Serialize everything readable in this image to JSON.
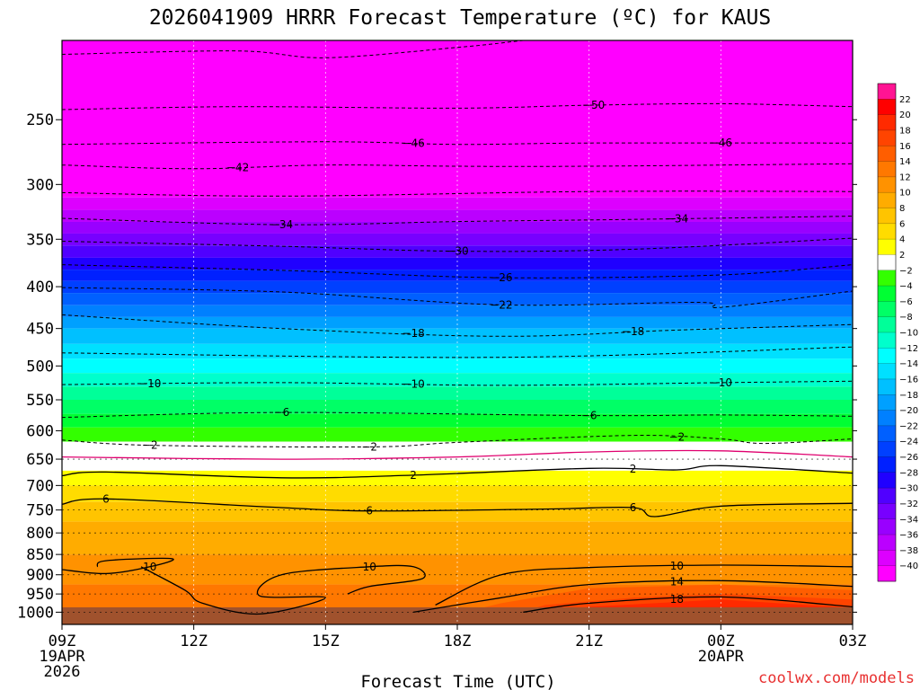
{
  "chart_data": {
    "type": "time-height contour",
    "title": "2026041909 HRRR Forecast Temperature (ºC) for KAUS",
    "xlabel": "Forecast Time (UTC)",
    "ylabel": "",
    "credit": "coolwx.com/models",
    "x_ticks": [
      {
        "h": 0,
        "lines": [
          "09Z",
          "19APR",
          "2026"
        ]
      },
      {
        "h": 3,
        "lines": [
          "12Z"
        ]
      },
      {
        "h": 6,
        "lines": [
          "15Z"
        ]
      },
      {
        "h": 9,
        "lines": [
          "18Z"
        ]
      },
      {
        "h": 12,
        "lines": [
          "21Z"
        ]
      },
      {
        "h": 15,
        "lines": [
          "00Z",
          "20APR"
        ]
      },
      {
        "h": 18,
        "lines": [
          "03Z"
        ]
      }
    ],
    "x_range_hours": [
      0,
      18
    ],
    "y_ticks": [
      250,
      300,
      350,
      400,
      450,
      500,
      550,
      600,
      650,
      700,
      750,
      800,
      850,
      900,
      950,
      1000
    ],
    "y_range_hpa": [
      200,
      1035
    ],
    "colorbar": {
      "labels": [
        22,
        20,
        18,
        16,
        14,
        12,
        10,
        8,
        6,
        4,
        2,
        -2,
        -4,
        -6,
        -8,
        -10,
        -12,
        -14,
        -16,
        -18,
        -20,
        -22,
        -24,
        -26,
        -28,
        -30,
        -32,
        -34,
        -36,
        -38,
        -40
      ],
      "bins": [
        {
          "color": "#ff1493"
        },
        {
          "color": "#ff0000"
        },
        {
          "color": "#ff2a00"
        },
        {
          "color": "#ff4400"
        },
        {
          "color": "#ff5e00"
        },
        {
          "color": "#ff7800"
        },
        {
          "color": "#ff9200"
        },
        {
          "color": "#ffac00"
        },
        {
          "color": "#ffc400"
        },
        {
          "color": "#ffdc00"
        },
        {
          "color": "#ffff00"
        },
        {
          "color": "#ffffff"
        },
        {
          "color": "#33ff00"
        },
        {
          "color": "#00ff33"
        },
        {
          "color": "#00ff66"
        },
        {
          "color": "#00ff99"
        },
        {
          "color": "#00ffcc"
        },
        {
          "color": "#00ffff"
        },
        {
          "color": "#00e0ff"
        },
        {
          "color": "#00c0ff"
        },
        {
          "color": "#00a0ff"
        },
        {
          "color": "#0080ff"
        },
        {
          "color": "#0060ff"
        },
        {
          "color": "#0040ff"
        },
        {
          "color": "#0020ff"
        },
        {
          "color": "#2000ff"
        },
        {
          "color": "#5000ff"
        },
        {
          "color": "#7800ff"
        },
        {
          "color": "#9900ff"
        },
        {
          "color": "#bb00ff"
        },
        {
          "color": "#dd00ff"
        },
        {
          "color": "#ff00ff"
        }
      ]
    },
    "temperature_profile": [
      {
        "p": 200,
        "t": -58
      },
      {
        "p": 250,
        "t": -51
      },
      {
        "p": 300,
        "t": -42
      },
      {
        "p": 350,
        "t": -33
      },
      {
        "p": 400,
        "t": -25
      },
      {
        "p": 450,
        "t": -18
      },
      {
        "p": 500,
        "t": -13
      },
      {
        "p": 550,
        "t": -8
      },
      {
        "p": 600,
        "t": -3.5
      },
      {
        "p": 650,
        "t": 0.5
      },
      {
        "p": 700,
        "t": 4
      },
      {
        "p": 750,
        "t": 7
      },
      {
        "p": 800,
        "t": 9
      },
      {
        "p": 850,
        "t": 10
      },
      {
        "p": 900,
        "t": 11
      },
      {
        "p": 950,
        "t": 13
      },
      {
        "p": 1000,
        "t": 14
      }
    ],
    "contours": [
      {
        "level": -54,
        "style": "dashed",
        "points": [
          [
            0,
            208
          ],
          [
            4,
            206
          ],
          [
            6,
            210
          ],
          [
            9,
            204
          ],
          [
            10.5,
            200
          ]
        ]
      },
      {
        "level": -50,
        "style": "dashed",
        "points": [
          [
            0,
            243
          ],
          [
            4,
            241
          ],
          [
            9,
            242
          ],
          [
            12,
            240
          ],
          [
            15,
            239
          ],
          [
            18,
            241
          ]
        ],
        "label_at": 12.1
      },
      {
        "level": -46,
        "style": "dashed",
        "points": [
          [
            0,
            268
          ],
          [
            6,
            266
          ],
          [
            9,
            268
          ],
          [
            12,
            267
          ],
          [
            18,
            267
          ]
        ],
        "label_at": 8
      },
      {
        "level": -46,
        "style": "dashed",
        "points": [
          [
            0,
            267
          ],
          [
            18,
            267
          ]
        ],
        "label_at": 15,
        "label_only": true
      },
      {
        "level": -42,
        "style": "dashed",
        "points": [
          [
            0,
            284
          ],
          [
            3,
            287
          ],
          [
            6,
            284
          ],
          [
            9,
            285
          ],
          [
            12,
            285
          ],
          [
            18,
            283
          ]
        ],
        "label_at": 4
      },
      {
        "level": -38,
        "style": "dashed",
        "points": [
          [
            0,
            307
          ],
          [
            5,
            310
          ],
          [
            12,
            306
          ],
          [
            18,
            306
          ]
        ]
      },
      {
        "level": -34,
        "style": "dashed",
        "points": [
          [
            0,
            330
          ],
          [
            5,
            336
          ],
          [
            9,
            333
          ],
          [
            13,
            331
          ],
          [
            18,
            328
          ]
        ],
        "label_at": 5,
        "label2_at": 14
      },
      {
        "level": -30,
        "style": "dashed",
        "points": [
          [
            0,
            352
          ],
          [
            5,
            357
          ],
          [
            9,
            362
          ],
          [
            13,
            360
          ],
          [
            18,
            349
          ]
        ],
        "label_at": 9
      },
      {
        "level": -26,
        "style": "dashed",
        "points": [
          [
            0,
            376
          ],
          [
            5,
            382
          ],
          [
            10,
            390
          ],
          [
            15,
            387
          ],
          [
            18,
            376
          ]
        ],
        "label_at": 10
      },
      {
        "level": -22,
        "style": "dashed",
        "points": [
          [
            0,
            401
          ],
          [
            5,
            406
          ],
          [
            10,
            421
          ],
          [
            14.5,
            418
          ],
          [
            15,
            424
          ],
          [
            18,
            405
          ]
        ],
        "label_at": 10
      },
      {
        "level": -18,
        "style": "dashed",
        "points": [
          [
            0,
            433
          ],
          [
            5,
            450
          ],
          [
            10,
            460
          ],
          [
            14,
            452
          ],
          [
            18,
            445
          ]
        ],
        "label_at": 8,
        "label2_at": 13
      },
      {
        "level": -14,
        "style": "dashed",
        "points": [
          [
            0,
            482
          ],
          [
            10,
            488
          ],
          [
            18,
            474
          ]
        ]
      },
      {
        "level": -10,
        "style": "dashed",
        "points": [
          [
            0,
            527
          ],
          [
            5,
            524
          ],
          [
            10,
            528
          ],
          [
            15,
            524
          ],
          [
            18,
            522
          ]
        ],
        "label_at": 2,
        "label2_at": 8,
        "label3_at": 15
      },
      {
        "level": -6,
        "style": "dashed",
        "points": [
          [
            0,
            578
          ],
          [
            5,
            570
          ],
          [
            12,
            575
          ],
          [
            15,
            574
          ],
          [
            18,
            576
          ]
        ],
        "label_at": 5,
        "label2_at": 12
      },
      {
        "level": -2,
        "style": "dashed",
        "points": [
          [
            0,
            616
          ],
          [
            2,
            625
          ],
          [
            7,
            628
          ],
          [
            9,
            620
          ],
          [
            13,
            608
          ],
          [
            15,
            614
          ],
          [
            16,
            622
          ],
          [
            18,
            614
          ]
        ],
        "label_at": 2,
        "label2_at": 7,
        "label3_at": 14
      },
      {
        "level": 0,
        "style": "magenta",
        "points": [
          [
            0,
            646
          ],
          [
            5,
            650
          ],
          [
            9,
            646
          ],
          [
            12,
            637
          ],
          [
            15,
            635
          ],
          [
            18,
            646
          ]
        ]
      },
      {
        "level": 2,
        "style": "solid",
        "points": [
          [
            0,
            681
          ],
          [
            1,
            674
          ],
          [
            5,
            685
          ],
          [
            8,
            680
          ],
          [
            12,
            667
          ],
          [
            14,
            670
          ],
          [
            15,
            662
          ],
          [
            18,
            676
          ]
        ],
        "label_at": 8,
        "label2_at": 13
      },
      {
        "level": 6,
        "style": "solid",
        "points": [
          [
            0,
            738
          ],
          [
            1,
            727
          ],
          [
            5,
            745
          ],
          [
            7,
            752
          ],
          [
            11,
            748
          ],
          [
            13,
            745
          ],
          [
            13.5,
            764
          ],
          [
            15,
            742
          ],
          [
            18,
            736
          ]
        ],
        "label_at": 1,
        "label2_at": 7,
        "label3_at": 13
      },
      {
        "level": 10,
        "style": "solid",
        "points": [
          [
            0,
            887
          ],
          [
            1,
            897
          ],
          [
            2,
            880
          ],
          [
            2.5,
            860
          ],
          [
            1,
            865
          ],
          [
            0.8,
            880
          ]
        ],
        "label_at": 2
      },
      {
        "level": 10,
        "style": "solid",
        "points": [
          [
            1.8,
            880
          ],
          [
            2.8,
            940
          ],
          [
            3.2,
            975
          ],
          [
            4.5,
            1005
          ],
          [
            6,
            960
          ],
          [
            4.5,
            955
          ],
          [
            5,
            900
          ],
          [
            7,
            880
          ],
          [
            8,
            880
          ],
          [
            8.2,
            910
          ],
          [
            7,
            930
          ],
          [
            6.5,
            950
          ]
        ],
        "label_at": 7
      },
      {
        "level": 10,
        "style": "solid",
        "points": [
          [
            8.5,
            980
          ],
          [
            10,
            900
          ],
          [
            12,
            882
          ],
          [
            15,
            876
          ],
          [
            18,
            880
          ]
        ],
        "label_at": 14
      },
      {
        "level": 14,
        "style": "solid",
        "points": [
          [
            8,
            1000
          ],
          [
            10,
            960
          ],
          [
            12,
            925
          ],
          [
            15,
            915
          ],
          [
            18,
            930
          ]
        ],
        "label_at": 14
      },
      {
        "level": 18,
        "style": "solid",
        "points": [
          [
            10.5,
            1000
          ],
          [
            12,
            975
          ],
          [
            15,
            958
          ],
          [
            18,
            985
          ]
        ],
        "label_at": 14
      }
    ]
  }
}
